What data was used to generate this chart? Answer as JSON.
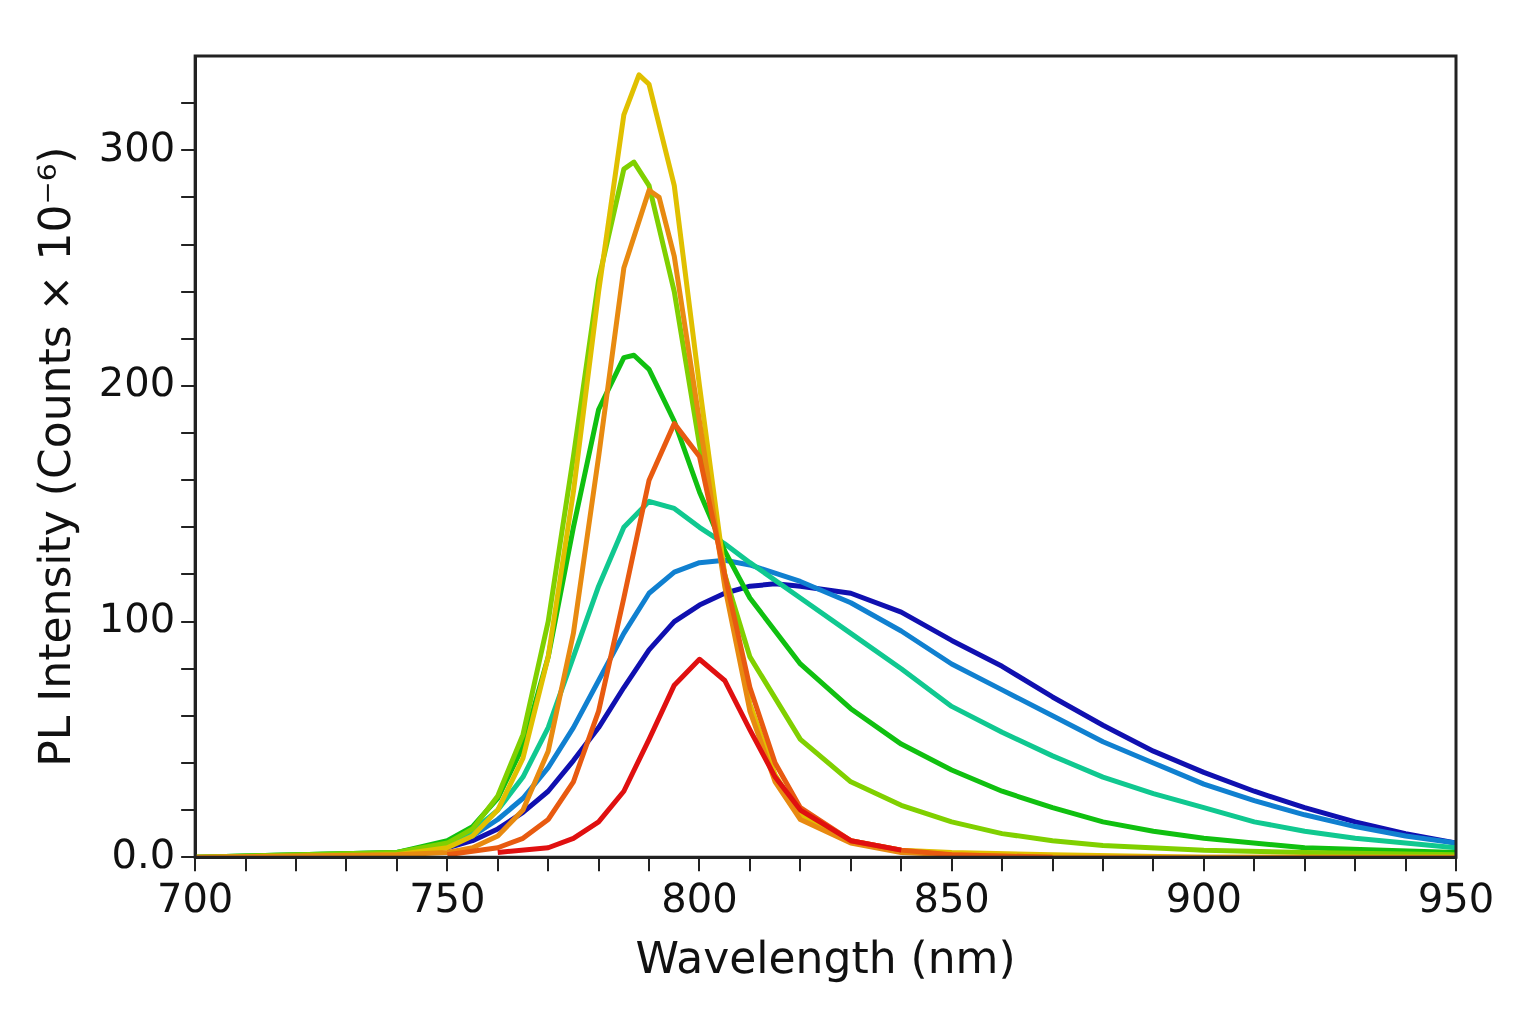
{
  "chart_data": {
    "type": "line",
    "xlabel": "Wavelength (nm)",
    "ylabel": "PL Intensity (Counts × 10⁻⁶)",
    "xlim": [
      700,
      950
    ],
    "ylim": [
      0,
      340
    ],
    "xticks": [
      700,
      {
        "value": 710,
        "label": null
      },
      {
        "value": 720,
        "label": null
      },
      {
        "value": 730,
        "label": null
      },
      {
        "value": 740,
        "label": null
      },
      750,
      {
        "value": 760,
        "label": null
      },
      {
        "value": 770,
        "label": null
      },
      {
        "value": 780,
        "label": null
      },
      {
        "value": 790,
        "label": null
      },
      800,
      {
        "value": 810,
        "label": null
      },
      {
        "value": 820,
        "label": null
      },
      {
        "value": 830,
        "label": null
      },
      {
        "value": 840,
        "label": null
      },
      850,
      {
        "value": 860,
        "label": null
      },
      {
        "value": 870,
        "label": null
      },
      {
        "value": 880,
        "label": null
      },
      {
        "value": 890,
        "label": null
      },
      900,
      {
        "value": 910,
        "label": null
      },
      {
        "value": 920,
        "label": null
      },
      {
        "value": 930,
        "label": null
      },
      {
        "value": 940,
        "label": null
      },
      950
    ],
    "yticks": [
      {
        "value": 0,
        "label": "0.0"
      },
      {
        "value": 20,
        "label": null
      },
      {
        "value": 40,
        "label": null
      },
      {
        "value": 60,
        "label": null
      },
      {
        "value": 80,
        "label": null
      },
      100,
      {
        "value": 120,
        "label": null
      },
      {
        "value": 140,
        "label": null
      },
      {
        "value": 160,
        "label": null
      },
      {
        "value": 180,
        "label": null
      },
      200,
      {
        "value": 220,
        "label": null
      },
      {
        "value": 240,
        "label": null
      },
      {
        "value": 260,
        "label": null
      },
      {
        "value": 280,
        "label": null
      },
      300,
      {
        "value": 320,
        "label": null
      }
    ],
    "grid": false,
    "legend": false,
    "marker": "none",
    "line_style": "solid",
    "series": [
      {
        "color": "#e01010",
        "x": [
          760,
          770,
          775,
          780,
          785,
          790,
          795,
          800,
          805,
          810,
          815,
          820,
          830,
          840
        ],
        "values": [
          2,
          4,
          8,
          15,
          28,
          50,
          73,
          84,
          75,
          54,
          34,
          20,
          7,
          3
        ]
      },
      {
        "color": "#e85a10",
        "x": [
          750,
          760,
          765,
          770,
          775,
          780,
          785,
          790,
          795,
          800,
          805,
          810,
          815,
          820,
          830,
          840,
          850,
          870
        ],
        "values": [
          1,
          4,
          8,
          16,
          32,
          62,
          110,
          160,
          184,
          170,
          120,
          72,
          40,
          21,
          7,
          3,
          1,
          0
        ]
      },
      {
        "color": "#e88a10",
        "x": [
          700,
          740,
          750,
          755,
          760,
          765,
          770,
          775,
          780,
          785,
          790,
          792,
          795,
          800,
          805,
          810,
          815,
          820,
          830,
          840,
          850,
          870,
          950
        ],
        "values": [
          0,
          1,
          2,
          4,
          9,
          20,
          45,
          95,
          170,
          250,
          283,
          280,
          255,
          185,
          115,
          62,
          32,
          16,
          6,
          2,
          1,
          0,
          0
        ]
      },
      {
        "color": "#e0c000",
        "x": [
          700,
          720,
          740,
          750,
          755,
          760,
          765,
          770,
          775,
          780,
          785,
          788,
          790,
          795,
          800,
          805,
          810,
          815,
          820,
          830,
          840,
          850,
          870,
          900,
          950
        ],
        "values": [
          0,
          0,
          1,
          4,
          9,
          20,
          42,
          85,
          155,
          240,
          315,
          332,
          328,
          285,
          200,
          120,
          65,
          35,
          18,
          7,
          3,
          2,
          1,
          0,
          0
        ]
      },
      {
        "color": "#80d000",
        "x": [
          700,
          740,
          750,
          755,
          760,
          765,
          770,
          775,
          780,
          785,
          787,
          790,
          795,
          800,
          805,
          810,
          820,
          830,
          840,
          850,
          860,
          870,
          880,
          900,
          920,
          950
        ],
        "values": [
          0,
          2,
          6,
          12,
          26,
          52,
          100,
          170,
          245,
          292,
          295,
          285,
          240,
          175,
          120,
          85,
          50,
          32,
          22,
          15,
          10,
          7,
          5,
          3,
          2,
          1
        ]
      },
      {
        "color": "#10c010",
        "x": [
          700,
          740,
          750,
          755,
          760,
          765,
          770,
          775,
          780,
          785,
          787,
          790,
          795,
          800,
          805,
          810,
          820,
          830,
          840,
          850,
          860,
          870,
          880,
          890,
          900,
          920,
          950
        ],
        "values": [
          0,
          2,
          7,
          13,
          25,
          47,
          85,
          140,
          190,
          212,
          213,
          207,
          185,
          155,
          130,
          110,
          82,
          63,
          48,
          37,
          28,
          21,
          15,
          11,
          8,
          4,
          2
        ]
      },
      {
        "color": "#10c890",
        "x": [
          700,
          740,
          750,
          755,
          760,
          765,
          770,
          775,
          780,
          785,
          790,
          795,
          800,
          805,
          810,
          820,
          830,
          840,
          850,
          860,
          870,
          880,
          890,
          900,
          910,
          920,
          930,
          940,
          950
        ],
        "values": [
          0,
          2,
          6,
          11,
          20,
          34,
          55,
          85,
          115,
          140,
          151,
          148,
          140,
          133,
          125,
          110,
          95,
          80,
          64,
          53,
          43,
          34,
          27,
          21,
          15,
          11,
          8,
          6,
          4
        ]
      },
      {
        "color": "#1080d0",
        "x": [
          750,
          755,
          760,
          765,
          770,
          775,
          780,
          785,
          790,
          795,
          800,
          805,
          810,
          820,
          830,
          840,
          850,
          860,
          870,
          880,
          890,
          900,
          910,
          920,
          930,
          940,
          950
        ],
        "values": [
          5,
          9,
          16,
          25,
          38,
          55,
          75,
          95,
          112,
          121,
          125,
          126,
          124,
          117,
          108,
          96,
          82,
          71,
          60,
          49,
          40,
          31,
          24,
          18,
          13,
          9,
          6
        ]
      },
      {
        "color": "#1010b0",
        "x": [
          750,
          755,
          760,
          765,
          770,
          775,
          780,
          785,
          790,
          795,
          800,
          805,
          810,
          815,
          820,
          830,
          840,
          850,
          860,
          870,
          880,
          890,
          900,
          910,
          920,
          930,
          940,
          950
        ],
        "values": [
          4,
          7,
          12,
          19,
          28,
          41,
          55,
          72,
          88,
          100,
          107,
          112,
          115,
          116,
          115,
          112,
          104,
          92,
          81,
          68,
          56,
          45,
          36,
          28,
          21,
          15,
          10,
          6
        ]
      }
    ]
  }
}
